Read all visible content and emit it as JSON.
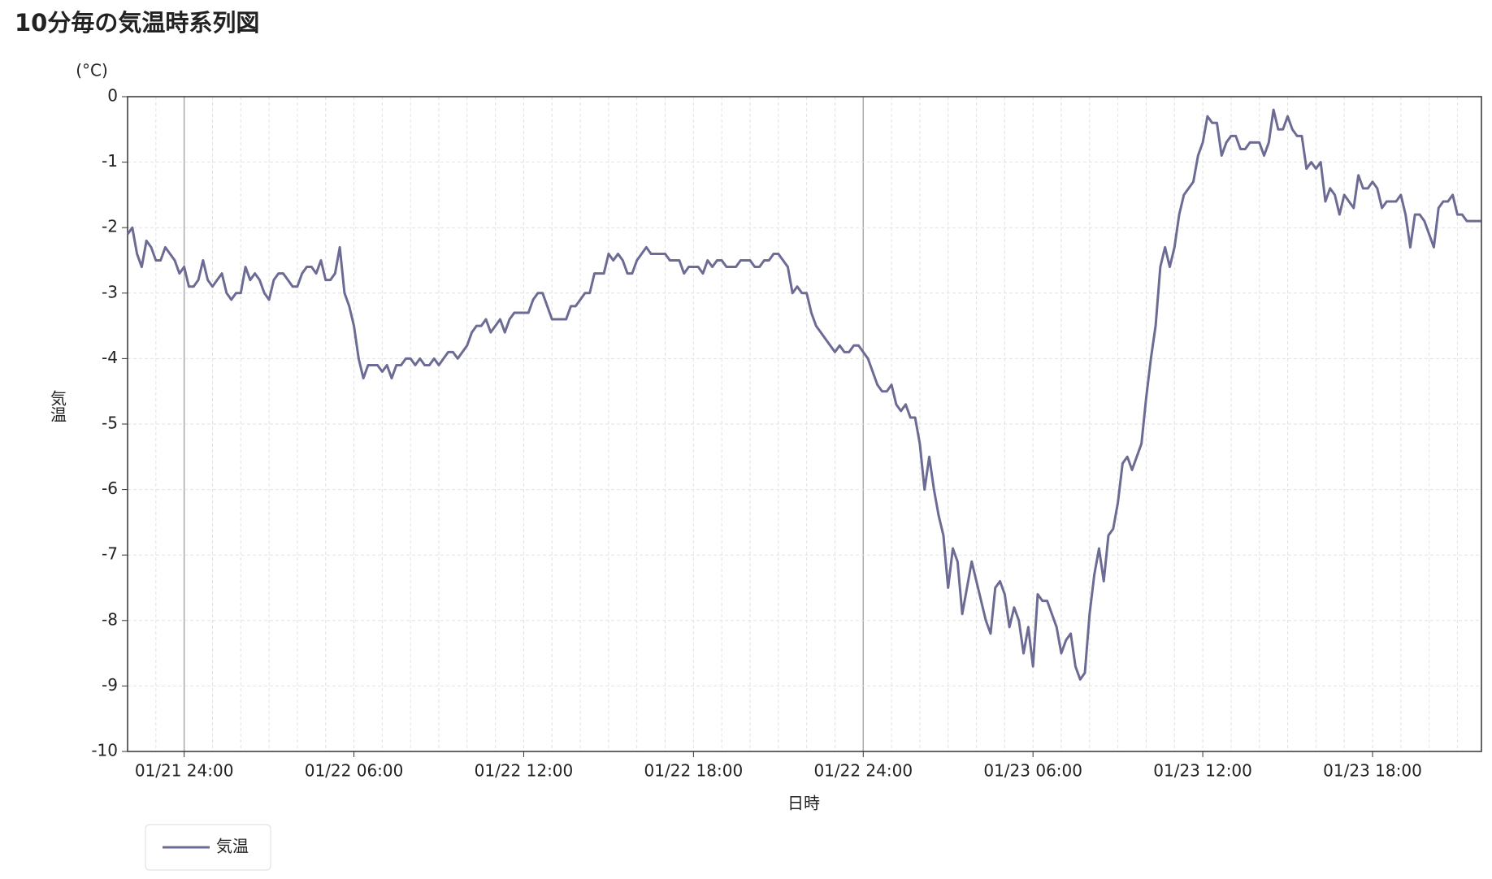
{
  "chart_data": {
    "type": "line",
    "title": "10分毎の気温時系列図",
    "y_unit": "(°C)",
    "ylabel": "気温",
    "xlabel": "日時",
    "categories": [
      null,
      null,
      null,
      null,
      null,
      null,
      null,
      null,
      null,
      null,
      null,
      null,
      "01/21 24:00",
      null,
      null,
      null,
      null,
      null,
      null,
      null,
      null,
      null,
      null,
      null,
      null,
      null,
      null,
      null,
      null,
      null,
      null,
      null,
      null,
      null,
      null,
      null,
      null,
      null,
      null,
      null,
      null,
      null,
      null,
      null,
      null,
      null,
      null,
      null,
      "01/22 06:00",
      null,
      null,
      null,
      null,
      null,
      null,
      null,
      null,
      null,
      null,
      null,
      null,
      null,
      null,
      null,
      null,
      null,
      null,
      null,
      null,
      null,
      null,
      null,
      null,
      null,
      null,
      null,
      null,
      null,
      null,
      null,
      null,
      null,
      null,
      null,
      "01/22 12:00",
      null,
      null,
      null,
      null,
      null,
      null,
      null,
      null,
      null,
      null,
      null,
      null,
      null,
      null,
      null,
      null,
      null,
      null,
      null,
      null,
      null,
      null,
      null,
      null,
      null,
      null,
      null,
      null,
      null,
      null,
      null,
      null,
      null,
      null,
      null,
      "01/22 18:00",
      null,
      null,
      null,
      null,
      null,
      null,
      null,
      null,
      null,
      null,
      null,
      null,
      null,
      null,
      null,
      null,
      null,
      null,
      null,
      null,
      null,
      null,
      null,
      null,
      null,
      null,
      null,
      null,
      null,
      null,
      null,
      null,
      null,
      null,
      null,
      "01/22 24:00",
      null,
      null,
      null,
      null,
      null,
      null,
      null,
      null,
      null,
      null,
      null,
      null,
      null,
      null,
      null,
      null,
      null,
      null,
      null,
      null,
      null,
      null,
      null,
      null,
      null,
      null,
      null,
      null,
      null,
      null,
      null,
      null,
      null,
      null,
      null,
      "01/23 06:00",
      null,
      null,
      null,
      null,
      null,
      null,
      null,
      null,
      null,
      null,
      null,
      null,
      null,
      null,
      null,
      null,
      null,
      null,
      null,
      null,
      null,
      null,
      null,
      null,
      null,
      null,
      null,
      null,
      null,
      null,
      null,
      null,
      null,
      null,
      null,
      "01/23 12:00",
      null,
      null,
      null,
      null,
      null,
      null,
      null,
      null,
      null,
      null,
      null,
      null,
      null,
      null,
      null,
      null,
      null,
      null,
      null,
      null,
      null,
      null,
      null,
      null,
      null,
      null,
      null,
      null,
      null,
      null,
      null,
      null,
      null,
      null,
      null,
      "01/23 18:00",
      null,
      null,
      null,
      null,
      null,
      null,
      null,
      null,
      null,
      null,
      null,
      null,
      null,
      null,
      null,
      null,
      null,
      null,
      null,
      null,
      null,
      null,
      null
    ],
    "series": [
      {
        "name": "気温",
        "color": "#6b6b94",
        "values": [
          -2.1,
          -2.0,
          -2.4,
          -2.6,
          -2.2,
          -2.3,
          -2.5,
          -2.5,
          -2.3,
          -2.4,
          -2.5,
          -2.7,
          -2.6,
          -2.9,
          -2.9,
          -2.8,
          -2.5,
          -2.8,
          -2.9,
          -2.8,
          -2.7,
          -3.0,
          -3.1,
          -3.0,
          -3.0,
          -2.6,
          -2.8,
          -2.7,
          -2.8,
          -3.0,
          -3.1,
          -2.8,
          -2.7,
          -2.7,
          -2.8,
          -2.9,
          -2.9,
          -2.7,
          -2.6,
          -2.6,
          -2.7,
          -2.5,
          -2.8,
          -2.8,
          -2.7,
          -2.3,
          -3.0,
          -3.2,
          -3.5,
          -4.0,
          -4.3,
          -4.1,
          -4.1,
          -4.1,
          -4.2,
          -4.1,
          -4.3,
          -4.1,
          -4.1,
          -4.0,
          -4.0,
          -4.1,
          -4.0,
          -4.1,
          -4.1,
          -4.0,
          -4.1,
          -4.0,
          -3.9,
          -3.9,
          -4.0,
          -3.9,
          -3.8,
          -3.6,
          -3.5,
          -3.5,
          -3.4,
          -3.6,
          -3.5,
          -3.4,
          -3.6,
          -3.4,
          -3.3,
          -3.3,
          -3.3,
          -3.3,
          -3.1,
          -3.0,
          -3.0,
          -3.2,
          -3.4,
          -3.4,
          -3.4,
          -3.4,
          -3.2,
          -3.2,
          -3.1,
          -3.0,
          -3.0,
          -2.7,
          -2.7,
          -2.7,
          -2.4,
          -2.5,
          -2.4,
          -2.5,
          -2.7,
          -2.7,
          -2.5,
          -2.4,
          -2.3,
          -2.4,
          -2.4,
          -2.4,
          -2.4,
          -2.5,
          -2.5,
          -2.5,
          -2.7,
          -2.6,
          -2.6,
          -2.6,
          -2.7,
          -2.5,
          -2.6,
          -2.5,
          -2.5,
          -2.6,
          -2.6,
          -2.6,
          -2.5,
          -2.5,
          -2.5,
          -2.6,
          -2.6,
          -2.5,
          -2.5,
          -2.4,
          -2.4,
          -2.5,
          -2.6,
          -3.0,
          -2.9,
          -3.0,
          -3.0,
          -3.3,
          -3.5,
          -3.6,
          -3.7,
          -3.8,
          -3.9,
          -3.8,
          -3.9,
          -3.9,
          -3.8,
          -3.8,
          -3.9,
          -4.0,
          -4.2,
          -4.4,
          -4.5,
          -4.5,
          -4.4,
          -4.7,
          -4.8,
          -4.7,
          -4.9,
          -4.9,
          -5.3,
          -6.0,
          -5.5,
          -6.0,
          -6.4,
          -6.7,
          -7.5,
          -6.9,
          -7.1,
          -7.9,
          -7.5,
          -7.1,
          -7.4,
          -7.7,
          -8.0,
          -8.2,
          -7.5,
          -7.4,
          -7.6,
          -8.1,
          -7.8,
          -8.0,
          -8.5,
          -8.1,
          -8.7,
          -7.6,
          -7.7,
          -7.7,
          -7.9,
          -8.1,
          -8.5,
          -8.3,
          -8.2,
          -8.7,
          -8.9,
          -8.8,
          -7.9,
          -7.3,
          -6.9,
          -7.4,
          -6.7,
          -6.6,
          -6.2,
          -5.6,
          -5.5,
          -5.7,
          -5.5,
          -5.3,
          -4.6,
          -4.0,
          -3.5,
          -2.6,
          -2.3,
          -2.6,
          -2.3,
          -1.8,
          -1.5,
          -1.4,
          -1.3,
          -0.9,
          -0.7,
          -0.3,
          -0.4,
          -0.4,
          -0.9,
          -0.7,
          -0.6,
          -0.6,
          -0.8,
          -0.8,
          -0.7,
          -0.7,
          -0.7,
          -0.9,
          -0.7,
          -0.2,
          -0.5,
          -0.5,
          -0.3,
          -0.5,
          -0.6,
          -0.6,
          -1.1,
          -1.0,
          -1.1,
          -1.0,
          -1.6,
          -1.4,
          -1.5,
          -1.8,
          -1.5,
          -1.6,
          -1.7,
          -1.2,
          -1.4,
          -1.4,
          -1.3,
          -1.4,
          -1.7,
          -1.6,
          -1.6,
          -1.6,
          -1.5,
          -1.8,
          -2.3,
          -1.8,
          -1.8,
          -1.9,
          -2.1,
          -2.3,
          -1.7,
          -1.6,
          -1.6,
          -1.5,
          -1.8,
          -1.8,
          -1.9,
          -1.9,
          -1.9,
          -1.9
        ]
      }
    ],
    "ylim": [
      -10,
      0
    ],
    "yticks": [
      -10,
      -9,
      -8,
      -7,
      -6,
      -5,
      -4,
      -3,
      -2,
      -1,
      0
    ],
    "grid": true,
    "legend": "bottom-left"
  }
}
